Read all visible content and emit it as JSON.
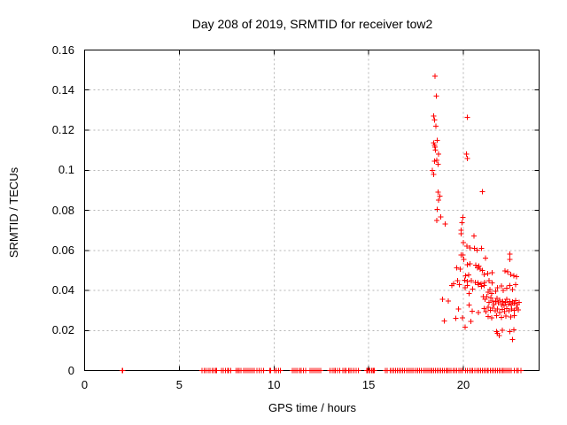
{
  "window": {
    "background": "#ffffff"
  },
  "colors": {
    "border": "#000000",
    "grid": "#b5b5b5",
    "marker": "#ff0000",
    "text": "#000000"
  },
  "chart_data": {
    "type": "scatter",
    "title": "Day 208 of 2019, SRMTID for receiver tow2",
    "xlabel": "GPS time / hours",
    "ylabel": "SRMTID / TECUs",
    "xlim": [
      0,
      24
    ],
    "ylim": [
      0,
      0.16
    ],
    "grid": true,
    "legend": "none",
    "marker": {
      "shape": "plus",
      "color": "#ff0000",
      "size": 7
    },
    "xticks": {
      "values": [
        0,
        5,
        10,
        15,
        20
      ],
      "labels": [
        "0",
        "5",
        "10",
        "15",
        "20"
      ]
    },
    "yticks": {
      "values": [
        0,
        0.02,
        0.04,
        0.06,
        0.08,
        0.1,
        0.12,
        0.14,
        0.16
      ],
      "labels": [
        "0",
        "0.02",
        "0.04",
        "0.06",
        "0.08",
        "0.1",
        "0.12",
        "0.14",
        "0.16"
      ]
    },
    "series": [
      {
        "name": "SRMTID",
        "points": [
          [
            18.5,
            0.147
          ],
          [
            18.57,
            0.137
          ],
          [
            18.44,
            0.127
          ],
          [
            18.47,
            0.125
          ],
          [
            18.55,
            0.122
          ],
          [
            18.63,
            0.115
          ],
          [
            18.44,
            0.1135
          ],
          [
            18.47,
            0.1125
          ],
          [
            18.5,
            0.1115
          ],
          [
            18.52,
            0.11
          ],
          [
            18.7,
            0.108
          ],
          [
            18.6,
            0.105
          ],
          [
            18.47,
            0.1045
          ],
          [
            18.67,
            0.103
          ],
          [
            18.36,
            0.0998
          ],
          [
            18.44,
            0.098
          ],
          [
            18.66,
            0.089
          ],
          [
            18.75,
            0.087
          ],
          [
            18.7,
            0.0851
          ],
          [
            18.63,
            0.0805
          ],
          [
            18.81,
            0.0767
          ],
          [
            18.6,
            0.0749
          ],
          [
            19.05,
            0.0731
          ],
          [
            20.22,
            0.1265
          ],
          [
            20.16,
            0.108
          ],
          [
            20.22,
            0.1058
          ],
          [
            21.0,
            0.0892
          ],
          [
            19.98,
            0.0764
          ],
          [
            19.94,
            0.0738
          ],
          [
            19.88,
            0.0701
          ],
          [
            19.88,
            0.0682
          ],
          [
            20.55,
            0.0672
          ],
          [
            20.0,
            0.0638
          ],
          [
            20.19,
            0.062
          ],
          [
            20.34,
            0.0613
          ],
          [
            20.58,
            0.061
          ],
          [
            20.73,
            0.0601
          ],
          [
            20.97,
            0.061
          ],
          [
            21.16,
            0.0561
          ],
          [
            19.88,
            0.0576
          ],
          [
            19.97,
            0.0576
          ],
          [
            20.03,
            0.0554
          ],
          [
            20.22,
            0.0528
          ],
          [
            20.34,
            0.0532
          ],
          [
            19.64,
            0.0513
          ],
          [
            19.83,
            0.0507
          ],
          [
            20.66,
            0.0525
          ],
          [
            20.81,
            0.0521
          ],
          [
            20.75,
            0.0513
          ],
          [
            20.89,
            0.0507
          ],
          [
            21.0,
            0.05
          ],
          [
            21.1,
            0.048
          ],
          [
            21.28,
            0.0484
          ],
          [
            21.52,
            0.0488
          ],
          [
            22.46,
            0.0581
          ],
          [
            22.46,
            0.0554
          ],
          [
            20.11,
            0.0473
          ],
          [
            20.27,
            0.0478
          ],
          [
            20.06,
            0.0451
          ],
          [
            20.22,
            0.0444
          ],
          [
            20.42,
            0.0448
          ],
          [
            20.63,
            0.0439
          ],
          [
            20.77,
            0.0437
          ],
          [
            20.94,
            0.0433
          ],
          [
            21.13,
            0.0439
          ],
          [
            21.36,
            0.0448
          ],
          [
            21.52,
            0.0437
          ],
          [
            22.19,
            0.0498
          ],
          [
            22.35,
            0.0493
          ],
          [
            22.5,
            0.048
          ],
          [
            22.66,
            0.0473
          ],
          [
            22.81,
            0.0469
          ],
          [
            19.49,
            0.0433
          ],
          [
            19.69,
            0.0448
          ],
          [
            19.4,
            0.0424
          ],
          [
            19.8,
            0.0429
          ],
          [
            20.1,
            0.0414
          ],
          [
            20.2,
            0.0424
          ],
          [
            20.5,
            0.0407
          ],
          [
            20.3,
            0.0385
          ],
          [
            20.8,
            0.0429
          ],
          [
            20.97,
            0.0419
          ],
          [
            21.1,
            0.0424
          ],
          [
            21.3,
            0.0392
          ],
          [
            21.4,
            0.0404
          ],
          [
            21.5,
            0.0385
          ],
          [
            21.7,
            0.0395
          ],
          [
            21.8,
            0.0414
          ],
          [
            22.0,
            0.0421
          ],
          [
            22.1,
            0.04
          ],
          [
            22.3,
            0.041
          ],
          [
            22.46,
            0.0424
          ],
          [
            22.6,
            0.0404
          ],
          [
            22.77,
            0.0429
          ],
          [
            18.9,
            0.0356
          ],
          [
            19.2,
            0.0348
          ],
          [
            19.75,
            0.0307
          ],
          [
            20.3,
            0.0326
          ],
          [
            20.47,
            0.0297
          ],
          [
            20.8,
            0.029
          ],
          [
            19.0,
            0.0248
          ],
          [
            19.6,
            0.026
          ],
          [
            19.96,
            0.0263
          ],
          [
            20.1,
            0.0216
          ],
          [
            20.4,
            0.0245
          ],
          [
            21.05,
            0.037
          ],
          [
            21.15,
            0.0355
          ],
          [
            21.25,
            0.0368
          ],
          [
            21.35,
            0.034
          ],
          [
            21.45,
            0.0362
          ],
          [
            21.55,
            0.0348
          ],
          [
            21.62,
            0.033
          ],
          [
            21.7,
            0.0345
          ],
          [
            21.78,
            0.036
          ],
          [
            21.85,
            0.0338
          ],
          [
            21.92,
            0.0352
          ],
          [
            22.0,
            0.033
          ],
          [
            22.08,
            0.0345
          ],
          [
            22.15,
            0.0325
          ],
          [
            22.22,
            0.034
          ],
          [
            22.3,
            0.0355
          ],
          [
            22.38,
            0.0332
          ],
          [
            22.45,
            0.0345
          ],
          [
            22.52,
            0.0328
          ],
          [
            22.6,
            0.0342
          ],
          [
            22.68,
            0.0335
          ],
          [
            22.75,
            0.035
          ],
          [
            22.85,
            0.033
          ],
          [
            22.95,
            0.034
          ],
          [
            21.1,
            0.031
          ],
          [
            21.2,
            0.0295
          ],
          [
            21.3,
            0.0315
          ],
          [
            21.42,
            0.03
          ],
          [
            21.55,
            0.0312
          ],
          [
            21.68,
            0.0298
          ],
          [
            21.8,
            0.0308
          ],
          [
            21.92,
            0.029
          ],
          [
            22.05,
            0.0305
          ],
          [
            22.18,
            0.0295
          ],
          [
            22.3,
            0.031
          ],
          [
            22.42,
            0.0298
          ],
          [
            22.55,
            0.0308
          ],
          [
            22.68,
            0.03
          ],
          [
            22.8,
            0.0312
          ],
          [
            22.9,
            0.0302
          ],
          [
            21.3,
            0.027
          ],
          [
            21.5,
            0.0262
          ],
          [
            21.75,
            0.0275
          ],
          [
            22.0,
            0.0265
          ],
          [
            22.25,
            0.0272
          ],
          [
            22.5,
            0.0268
          ],
          [
            22.7,
            0.0275
          ],
          [
            21.75,
            0.0194
          ],
          [
            21.9,
            0.0175
          ],
          [
            22.07,
            0.0201
          ],
          [
            22.66,
            0.0204
          ],
          [
            22.6,
            0.0155
          ],
          [
            22.46,
            0.0194
          ],
          [
            21.8,
            0.0186
          ]
        ],
        "baseline_y": 0,
        "baseline_segments": [
          [
            1.98,
            2.02
          ],
          [
            6.2,
            6.84
          ],
          [
            6.93,
            6.97
          ],
          [
            7.22,
            7.55
          ],
          [
            7.6,
            7.73
          ],
          [
            8.0,
            8.25
          ],
          [
            8.4,
            8.78
          ],
          [
            8.86,
            8.95
          ],
          [
            9.1,
            9.44
          ],
          [
            9.78,
            9.82
          ],
          [
            10.03,
            10.35
          ],
          [
            10.97,
            11.36
          ],
          [
            11.44,
            11.67
          ],
          [
            11.9,
            12.46
          ],
          [
            12.97,
            13.16
          ],
          [
            13.23,
            13.47
          ],
          [
            13.63,
            13.81
          ],
          [
            13.94,
            14.1
          ],
          [
            14.22,
            14.45
          ],
          [
            14.91,
            14.95
          ],
          [
            15.03,
            15.07
          ],
          [
            15.15,
            15.19
          ],
          [
            15.25,
            15.29
          ],
          [
            15.89,
            15.97
          ],
          [
            16.13,
            16.52
          ],
          [
            16.6,
            18.28
          ],
          [
            18.33,
            19.1
          ],
          [
            19.15,
            19.96
          ],
          [
            20.11,
            20.42
          ],
          [
            20.5,
            20.73
          ],
          [
            20.81,
            21.28
          ],
          [
            21.32,
            21.9
          ],
          [
            21.98,
            22.53
          ],
          [
            22.69,
            22.84
          ],
          [
            22.9,
            23.03
          ]
        ]
      }
    ]
  }
}
